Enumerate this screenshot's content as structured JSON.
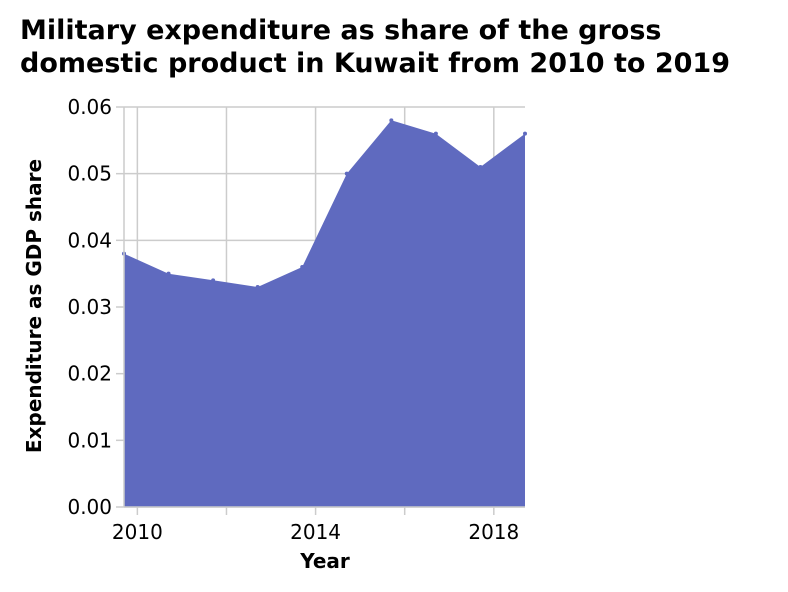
{
  "chart_data": {
    "type": "area",
    "title": "Military expenditure as share of the gross\ndomestic product in Kuwait from 2010 to 2019",
    "xlabel": "Year",
    "ylabel": "Expenditure as GDP share",
    "x": [
      2009.7,
      2010.7,
      2011.7,
      2012.7,
      2013.7,
      2014.7,
      2015.7,
      2016.7,
      2017.7,
      2018.7
    ],
    "values": [
      0.038,
      0.035,
      0.034,
      0.033,
      0.036,
      0.05,
      0.058,
      0.056,
      0.051,
      0.056
    ],
    "xlim": [
      2009.7,
      2018.7
    ],
    "ylim": [
      0.0,
      0.06
    ],
    "x_ticks": [
      2010,
      2012,
      2014,
      2016,
      2018
    ],
    "x_tick_labels": [
      "2010",
      "",
      "2014",
      "",
      "2018"
    ],
    "y_ticks": [
      0.0,
      0.01,
      0.02,
      0.03,
      0.04,
      0.05,
      0.06
    ],
    "y_tick_labels": [
      "0.00",
      "0.01",
      "0.02",
      "0.03",
      "0.04",
      "0.05",
      "0.06"
    ],
    "grid": true,
    "legend": "none",
    "colors": {
      "fill": "#5f6abf",
      "grid": "#cccccc",
      "axis": "#cccccc",
      "background": "#ffffff"
    }
  }
}
